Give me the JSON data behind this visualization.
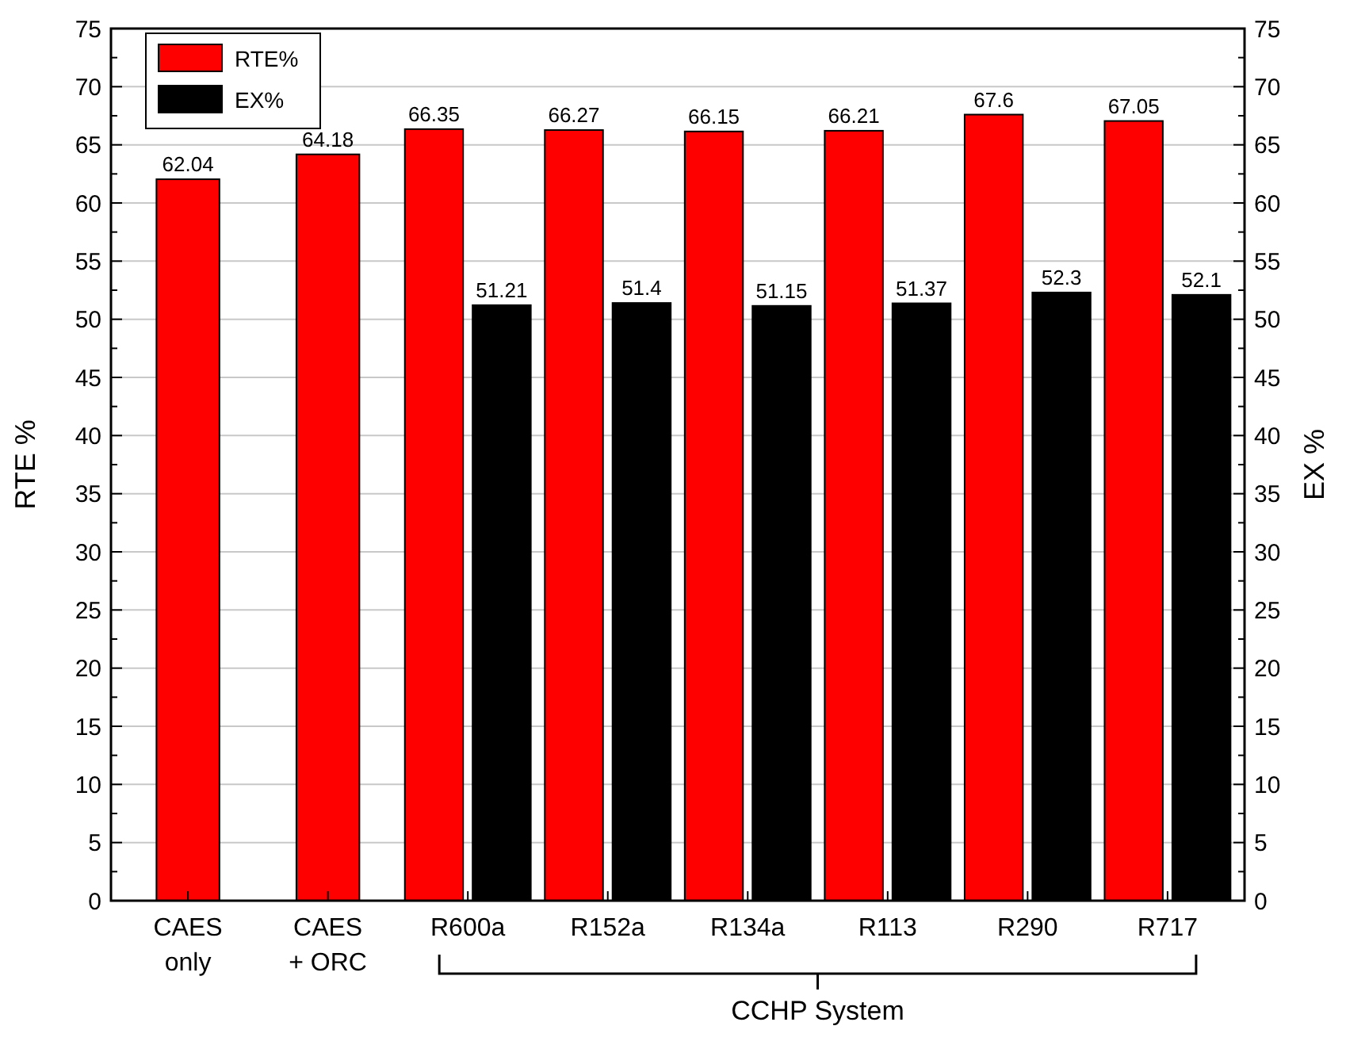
{
  "chart_data": {
    "type": "bar",
    "ylabel": "RTE %",
    "y2label": "EX %",
    "categories": [
      "CAES only",
      "CAES + ORC",
      "R600a",
      "R152a",
      "R134a",
      "R113",
      "R290",
      "R717"
    ],
    "series": [
      {
        "name": "RTE%",
        "color": "#ff0000",
        "values": [
          62.04,
          64.18,
          66.35,
          66.27,
          66.15,
          66.21,
          67.6,
          67.05
        ]
      },
      {
        "name": "EX%",
        "color": "#000000",
        "values": [
          null,
          null,
          51.21,
          51.4,
          51.15,
          51.37,
          52.3,
          52.1
        ]
      }
    ],
    "ylim": [
      0,
      75
    ],
    "yticks": [
      0,
      5,
      10,
      15,
      20,
      25,
      30,
      35,
      40,
      45,
      50,
      55,
      60,
      65,
      70,
      75
    ],
    "y2lim": [
      0,
      75
    ],
    "y2ticks": [
      0,
      5,
      10,
      15,
      20,
      25,
      30,
      35,
      40,
      45,
      50,
      55,
      60,
      65,
      70,
      75
    ],
    "grid": "y",
    "legend": "top left",
    "data_labels": true,
    "annotations": [
      "CCHP System"
    ]
  }
}
